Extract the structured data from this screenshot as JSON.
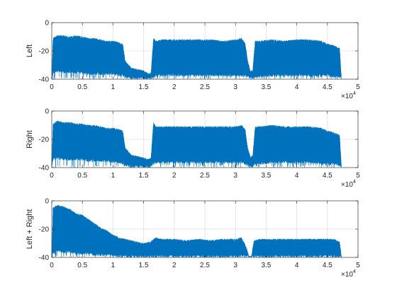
{
  "chart_data": [
    {
      "type": "line",
      "ylabel": "Left",
      "xlim": [
        0,
        50000
      ],
      "ylim": [
        -40,
        0
      ],
      "xticks": [
        0,
        5000,
        10000,
        15000,
        20000,
        25000,
        30000,
        35000,
        40000,
        45000,
        50000
      ],
      "xtick_labels": [
        "0",
        "0.5",
        "1",
        "1.5",
        "2",
        "2.5",
        "3",
        "3.5",
        "4",
        "4.5",
        "5"
      ],
      "yticks": [
        -40,
        -20,
        0
      ],
      "ytick_labels": [
        "-40",
        "-20",
        "0"
      ],
      "x_exponent": "×10",
      "x_exponent_power": "4",
      "grid": true,
      "color": "#0072BD",
      "series": [
        {
          "x": [
            0,
            200,
            1000,
            2000,
            3000,
            4000,
            5000,
            6000,
            7000,
            8000,
            9000,
            10000,
            11000,
            11600,
            12000,
            13000,
            14000,
            15000,
            15800,
            16200,
            16600,
            17000,
            18000,
            20000,
            22000,
            24000,
            26000,
            28000,
            30000,
            31000,
            31600,
            32000,
            32400,
            32800,
            33200,
            34000,
            36000,
            38000,
            40000,
            42000,
            44000,
            45000,
            46000,
            47000,
            47300
          ],
          "y": [
            -40,
            -12,
            -10,
            -10,
            -11,
            -10,
            -11,
            -12,
            -12,
            -13,
            -14,
            -14,
            -15,
            -16,
            -28,
            -33,
            -34,
            -35,
            -37,
            -36,
            -12,
            -14,
            -13,
            -13,
            -13,
            -13,
            -13,
            -14,
            -13,
            -12,
            -16,
            -28,
            -35,
            -35,
            -14,
            -14,
            -13,
            -14,
            -13,
            -13,
            -14,
            -16,
            -17,
            -19,
            -40
          ],
          "floor": [
            -40,
            -36,
            -35,
            -36,
            -36,
            -36,
            -36,
            -37,
            -37,
            -37,
            -37,
            -37,
            -38,
            -38,
            -39,
            -40,
            -40,
            -40,
            -40,
            -40,
            -39,
            -38,
            -38,
            -38,
            -38,
            -38,
            -38,
            -38,
            -38,
            -38,
            -38,
            -39,
            -40,
            -40,
            -39,
            -39,
            -38,
            -38,
            -38,
            -38,
            -38,
            -38,
            -39,
            -39,
            -40
          ]
        }
      ]
    },
    {
      "type": "line",
      "ylabel": "Right",
      "xlim": [
        0,
        50000
      ],
      "ylim": [
        -40,
        0
      ],
      "xticks": [
        0,
        5000,
        10000,
        15000,
        20000,
        25000,
        30000,
        35000,
        40000,
        45000,
        50000
      ],
      "xtick_labels": [
        "0",
        "0.5",
        "1",
        "1.5",
        "2",
        "2.5",
        "3",
        "3.5",
        "4",
        "4.5",
        "5"
      ],
      "yticks": [
        -40,
        -20,
        0
      ],
      "ytick_labels": [
        "-40",
        "-20",
        "0"
      ],
      "x_exponent": "×10",
      "x_exponent_power": "4",
      "grid": true,
      "color": "#0072BD",
      "series": [
        {
          "x": [
            0,
            200,
            1000,
            2000,
            3000,
            4000,
            5000,
            6000,
            7000,
            8000,
            9000,
            10000,
            11000,
            11600,
            12000,
            13000,
            14000,
            15000,
            15800,
            16200,
            16600,
            17000,
            18000,
            20000,
            22000,
            24000,
            26000,
            28000,
            30000,
            31000,
            31600,
            32000,
            32400,
            32800,
            33200,
            34000,
            36000,
            38000,
            40000,
            42000,
            44000,
            45000,
            46000,
            47000,
            47300
          ],
          "y": [
            -40,
            -10,
            -8,
            -9,
            -9,
            -10,
            -10,
            -11,
            -11,
            -12,
            -13,
            -13,
            -14,
            -15,
            -27,
            -32,
            -33,
            -34,
            -35,
            -34,
            -9,
            -12,
            -12,
            -12,
            -12,
            -12,
            -12,
            -12,
            -12,
            -11,
            -14,
            -27,
            -33,
            -33,
            -12,
            -12,
            -11,
            -12,
            -12,
            -12,
            -13,
            -15,
            -16,
            -18,
            -40
          ],
          "floor": [
            -40,
            -35,
            -34,
            -35,
            -35,
            -35,
            -35,
            -36,
            -36,
            -36,
            -36,
            -37,
            -37,
            -38,
            -39,
            -40,
            -40,
            -40,
            -40,
            -40,
            -38,
            -37,
            -37,
            -37,
            -37,
            -37,
            -37,
            -37,
            -37,
            -37,
            -38,
            -39,
            -40,
            -40,
            -38,
            -38,
            -37,
            -37,
            -37,
            -37,
            -38,
            -38,
            -38,
            -39,
            -40
          ]
        }
      ]
    },
    {
      "type": "line",
      "ylabel": "Left + Right",
      "xlim": [
        0,
        50000
      ],
      "ylim": [
        -40,
        0
      ],
      "xticks": [
        0,
        5000,
        10000,
        15000,
        20000,
        25000,
        30000,
        35000,
        40000,
        45000,
        50000
      ],
      "xtick_labels": [
        "0",
        "0.5",
        "1",
        "1.5",
        "2",
        "2.5",
        "3",
        "3.5",
        "4",
        "4.5",
        "5"
      ],
      "yticks": [
        -40,
        -20,
        0
      ],
      "ytick_labels": [
        "-40",
        "-20",
        "0"
      ],
      "x_exponent": "×10",
      "x_exponent_power": "4",
      "grid": true,
      "color": "#0072BD",
      "series": [
        {
          "x": [
            0,
            200,
            1000,
            2000,
            3000,
            4000,
            5000,
            6000,
            7000,
            8000,
            9000,
            10000,
            11000,
            12000,
            13000,
            14000,
            15000,
            16000,
            17000,
            18000,
            20000,
            22000,
            24000,
            26000,
            28000,
            30000,
            31000,
            31800,
            32200,
            32600,
            33000,
            34000,
            36000,
            38000,
            40000,
            42000,
            44000,
            46000,
            47000,
            47300
          ],
          "y": [
            -40,
            -6,
            -4,
            -5,
            -7,
            -10,
            -11,
            -14,
            -17,
            -20,
            -22,
            -25,
            -27,
            -28,
            -29,
            -30,
            -31,
            -30,
            -27,
            -28,
            -28,
            -29,
            -28,
            -29,
            -28,
            -28,
            -27,
            -34,
            -40,
            -40,
            -29,
            -28,
            -28,
            -28,
            -28,
            -28,
            -28,
            -28,
            -30,
            -40
          ],
          "floor": [
            -40,
            -38,
            -36,
            -37,
            -37,
            -38,
            -38,
            -38,
            -39,
            -39,
            -39,
            -39,
            -40,
            -40,
            -40,
            -40,
            -40,
            -40,
            -40,
            -40,
            -40,
            -40,
            -40,
            -40,
            -40,
            -40,
            -40,
            -40,
            -40,
            -40,
            -40,
            -40,
            -40,
            -40,
            -40,
            -40,
            -40,
            -40,
            -40,
            -40
          ]
        }
      ]
    }
  ]
}
